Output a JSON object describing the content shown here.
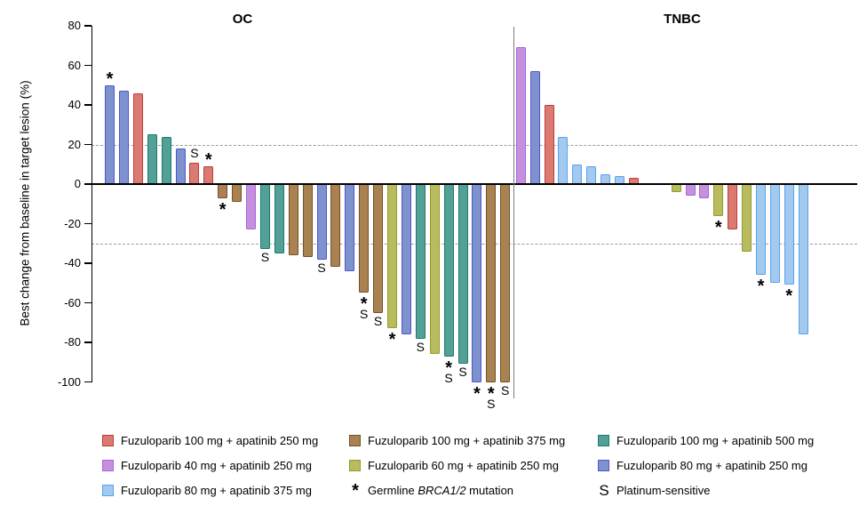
{
  "arms": {
    "f100a250": {
      "label": "Fuzuloparib 100 mg + apatinib 250 mg",
      "fill": "#DB7A71",
      "stroke": "#BE3B3B"
    },
    "f40a250": {
      "label": "Fuzuloparib 40 mg + apatinib 250 mg",
      "fill": "#C590DE",
      "stroke": "#A864DA"
    },
    "f80a375": {
      "label": "Fuzuloparib 80 mg + apatinib 375 mg",
      "fill": "#A3C9EE",
      "stroke": "#55A2F1"
    },
    "f100a375": {
      "label": "Fuzuloparib 100 mg + apatinib 375 mg",
      "fill": "#AA8251",
      "stroke": "#6F5127"
    },
    "f60a250": {
      "label": "Fuzuloparib 60 mg + apatinib 250 mg",
      "fill": "#B9BC5E",
      "stroke": "#909C2F"
    },
    "f100a500": {
      "label": "Fuzuloparib 100 mg + apatinib 500 mg",
      "fill": "#53A097",
      "stroke": "#1E7A6C"
    },
    "f80a250": {
      "label": "Fuzuloparib 80 mg + apatinib 250 mg",
      "fill": "#7E92CE",
      "stroke": "#5055CB"
    }
  },
  "chart_data": {
    "type": "bar",
    "subtype": "waterfall",
    "ylabel": "Best change from baseline in target lesion (%)",
    "ylim": [
      -100,
      80
    ],
    "yticks": [
      80,
      60,
      40,
      20,
      0,
      -20,
      -40,
      -60,
      -80,
      -100
    ],
    "reference_lines": [
      20,
      -30
    ],
    "grid": false,
    "flag_meanings": {
      "*": "Germline BRCA1/2 mutation",
      "S": "Platinum-sensitive"
    },
    "groups": [
      {
        "title": "OC",
        "bars": [
          {
            "value": 50,
            "arm": "f80a250",
            "flags": "*"
          },
          {
            "value": 47,
            "arm": "f80a250",
            "flags": ""
          },
          {
            "value": 46,
            "arm": "f100a250",
            "flags": ""
          },
          {
            "value": 25,
            "arm": "f100a500",
            "flags": ""
          },
          {
            "value": 24,
            "arm": "f100a500",
            "flags": ""
          },
          {
            "value": 18,
            "arm": "f80a250",
            "flags": ""
          },
          {
            "value": 11,
            "arm": "f100a250",
            "flags": "S"
          },
          {
            "value": 9,
            "arm": "f100a250",
            "flags": "*"
          },
          {
            "value": -7,
            "arm": "f100a375",
            "flags": "*"
          },
          {
            "value": -9,
            "arm": "f100a375",
            "flags": ""
          },
          {
            "value": -23,
            "arm": "f40a250",
            "flags": ""
          },
          {
            "value": -33,
            "arm": "f100a500",
            "flags": "S"
          },
          {
            "value": -35,
            "arm": "f100a500",
            "flags": ""
          },
          {
            "value": -36,
            "arm": "f100a375",
            "flags": ""
          },
          {
            "value": -37,
            "arm": "f100a375",
            "flags": ""
          },
          {
            "value": -38,
            "arm": "f80a250",
            "flags": "S"
          },
          {
            "value": -42,
            "arm": "f100a375",
            "flags": ""
          },
          {
            "value": -44,
            "arm": "f80a250",
            "flags": ""
          },
          {
            "value": -55,
            "arm": "f100a375",
            "flags": "*S"
          },
          {
            "value": -65,
            "arm": "f100a375",
            "flags": "S"
          },
          {
            "value": -73,
            "arm": "f60a250",
            "flags": "*"
          },
          {
            "value": -76,
            "arm": "f80a250",
            "flags": ""
          },
          {
            "value": -78,
            "arm": "f100a500",
            "flags": "S"
          },
          {
            "value": -86,
            "arm": "f60a250",
            "flags": ""
          },
          {
            "value": -87,
            "arm": "f100a500",
            "flags": "*S"
          },
          {
            "value": -91,
            "arm": "f100a500",
            "flags": "S"
          },
          {
            "value": -100,
            "arm": "f80a250",
            "flags": "*"
          },
          {
            "value": -100,
            "arm": "f100a375",
            "flags": "*S"
          },
          {
            "value": -100,
            "arm": "f100a375",
            "flags": "S"
          }
        ]
      },
      {
        "title": "TNBC",
        "bars": [
          {
            "value": 69,
            "arm": "f40a250",
            "flags": ""
          },
          {
            "value": 57,
            "arm": "f80a250",
            "flags": ""
          },
          {
            "value": 40,
            "arm": "f100a250",
            "flags": ""
          },
          {
            "value": 24,
            "arm": "f80a375",
            "flags": ""
          },
          {
            "value": 10,
            "arm": "f80a375",
            "flags": ""
          },
          {
            "value": 9,
            "arm": "f80a375",
            "flags": ""
          },
          {
            "value": 5,
            "arm": "f80a375",
            "flags": ""
          },
          {
            "value": 4,
            "arm": "f80a375",
            "flags": ""
          },
          {
            "value": 3,
            "arm": "f100a250",
            "flags": ""
          },
          {
            "value": 0,
            "arm": "",
            "flags": ""
          },
          {
            "value": 0,
            "arm": "",
            "flags": ""
          },
          {
            "value": -4,
            "arm": "f60a250",
            "flags": ""
          },
          {
            "value": -6,
            "arm": "f40a250",
            "flags": ""
          },
          {
            "value": -7,
            "arm": "f40a250",
            "flags": ""
          },
          {
            "value": -16,
            "arm": "f60a250",
            "flags": "*"
          },
          {
            "value": -23,
            "arm": "f100a250",
            "flags": ""
          },
          {
            "value": -34,
            "arm": "f60a250",
            "flags": ""
          },
          {
            "value": -46,
            "arm": "f80a375",
            "flags": "*"
          },
          {
            "value": -50,
            "arm": "f80a375",
            "flags": ""
          },
          {
            "value": -51,
            "arm": "f80a375",
            "flags": "*"
          },
          {
            "value": -76,
            "arm": "f80a375",
            "flags": ""
          }
        ]
      }
    ]
  },
  "legend": {
    "columns": [
      [
        {
          "swatch": "f100a250"
        },
        {
          "swatch": "f40a250"
        },
        {
          "swatch": "f80a375"
        }
      ],
      [
        {
          "swatch": "f100a375"
        },
        {
          "swatch": "f60a250"
        },
        {
          "symbol": "*",
          "prefix": "Germline ",
          "italic": "BRCA1/2",
          "suffix": " mutation"
        }
      ],
      [
        {
          "swatch": "f100a500"
        },
        {
          "swatch": "f80a250"
        },
        {
          "symbol": "S",
          "prefix": "Platinum-sensitive",
          "italic": "",
          "suffix": ""
        }
      ]
    ]
  }
}
